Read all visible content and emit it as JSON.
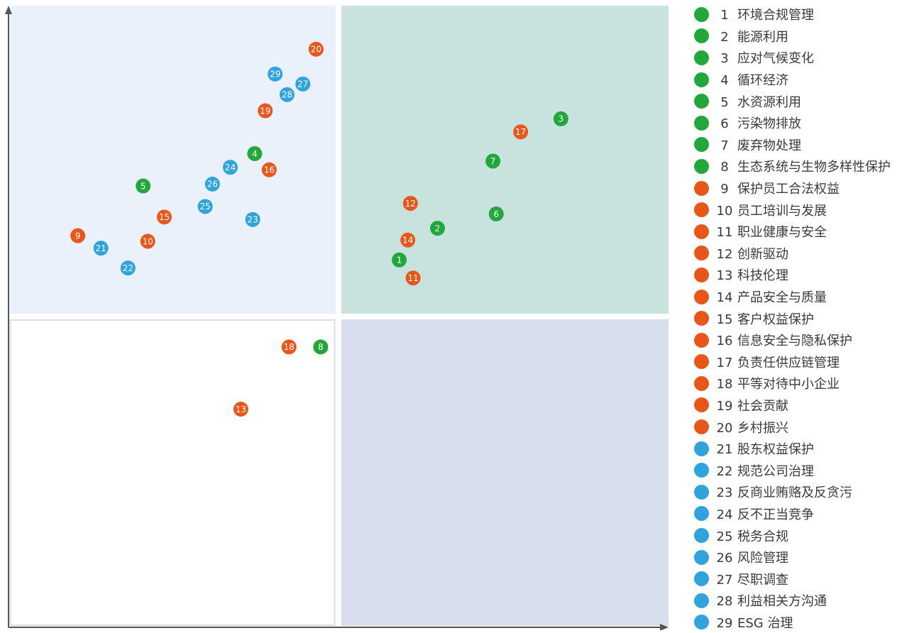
{
  "colors": {
    "environment": "#22a83a",
    "social": "#e8561a",
    "governance": "#2ea3dc",
    "quadrant_top_left": "#eaf1fa",
    "quadrant_top_right": "#c8e2de",
    "quadrant_bottom_right": "#d6deec",
    "quadrant_bottom_left_border": "#dddddd",
    "axis": "#555555"
  },
  "chart_data": {
    "type": "scatter",
    "xlim": [
      0,
      100
    ],
    "ylim": [
      0,
      100
    ],
    "grid": false,
    "quadrant_split": {
      "x": 50,
      "y": 50
    },
    "legend_position": "right",
    "points": [
      {
        "id": "1",
        "x": 59.2,
        "y": 59.1,
        "category": "environment"
      },
      {
        "id": "2",
        "x": 65.0,
        "y": 64.2,
        "category": "environment"
      },
      {
        "id": "3",
        "x": 83.7,
        "y": 81.8,
        "category": "environment"
      },
      {
        "id": "4",
        "x": 37.3,
        "y": 76.2,
        "category": "environment"
      },
      {
        "id": "5",
        "x": 20.4,
        "y": 71.0,
        "category": "environment"
      },
      {
        "id": "6",
        "x": 73.9,
        "y": 66.5,
        "category": "environment"
      },
      {
        "id": "7",
        "x": 73.4,
        "y": 75.0,
        "category": "environment"
      },
      {
        "id": "8",
        "x": 47.3,
        "y": 45.1,
        "category": "environment"
      },
      {
        "id": "9",
        "x": 10.5,
        "y": 63.0,
        "category": "social"
      },
      {
        "id": "10",
        "x": 21.1,
        "y": 62.1,
        "category": "social"
      },
      {
        "id": "11",
        "x": 61.3,
        "y": 56.2,
        "category": "social"
      },
      {
        "id": "12",
        "x": 60.9,
        "y": 68.2,
        "category": "social"
      },
      {
        "id": "13",
        "x": 35.2,
        "y": 35.1,
        "category": "social"
      },
      {
        "id": "14",
        "x": 60.5,
        "y": 62.3,
        "category": "social"
      },
      {
        "id": "15",
        "x": 23.6,
        "y": 66.0,
        "category": "social"
      },
      {
        "id": "16",
        "x": 39.5,
        "y": 73.6,
        "category": "social"
      },
      {
        "id": "17",
        "x": 77.6,
        "y": 79.7,
        "category": "social"
      },
      {
        "id": "18",
        "x": 42.5,
        "y": 45.1,
        "category": "social"
      },
      {
        "id": "19",
        "x": 38.9,
        "y": 83.1,
        "category": "social"
      },
      {
        "id": "20",
        "x": 46.6,
        "y": 93.0,
        "category": "social"
      },
      {
        "id": "21",
        "x": 14.0,
        "y": 61.0,
        "category": "governance"
      },
      {
        "id": "22",
        "x": 18.1,
        "y": 57.8,
        "category": "governance"
      },
      {
        "id": "23",
        "x": 37.0,
        "y": 65.6,
        "category": "governance"
      },
      {
        "id": "24",
        "x": 33.6,
        "y": 74.0,
        "category": "governance"
      },
      {
        "id": "25",
        "x": 29.8,
        "y": 67.7,
        "category": "governance"
      },
      {
        "id": "26",
        "x": 30.9,
        "y": 71.3,
        "category": "governance"
      },
      {
        "id": "27",
        "x": 44.6,
        "y": 87.4,
        "category": "governance"
      },
      {
        "id": "28",
        "x": 42.2,
        "y": 85.7,
        "category": "governance"
      },
      {
        "id": "29",
        "x": 40.4,
        "y": 89.0,
        "category": "governance"
      }
    ]
  },
  "legend": [
    {
      "num": "1",
      "label": "环境合规管理",
      "category": "environment"
    },
    {
      "num": "2",
      "label": "能源利用",
      "category": "environment"
    },
    {
      "num": "3",
      "label": "应对气候变化",
      "category": "environment"
    },
    {
      "num": "4",
      "label": "循环经济",
      "category": "environment"
    },
    {
      "num": "5",
      "label": "水资源利用",
      "category": "environment"
    },
    {
      "num": "6",
      "label": "污染物排放",
      "category": "environment"
    },
    {
      "num": "7",
      "label": "废弃物处理",
      "category": "environment"
    },
    {
      "num": "8",
      "label": "生态系统与生物多样性保护",
      "category": "environment"
    },
    {
      "num": "9",
      "label": "保护员工合法权益",
      "category": "social"
    },
    {
      "num": "10",
      "label": "员工培训与发展",
      "category": "social"
    },
    {
      "num": "11",
      "label": "职业健康与安全",
      "category": "social"
    },
    {
      "num": "12",
      "label": "创新驱动",
      "category": "social"
    },
    {
      "num": "13",
      "label": "科技伦理",
      "category": "social"
    },
    {
      "num": "14",
      "label": "产品安全与质量",
      "category": "social"
    },
    {
      "num": "15",
      "label": "客户权益保护",
      "category": "social"
    },
    {
      "num": "16",
      "label": "信息安全与隐私保护",
      "category": "social"
    },
    {
      "num": "17",
      "label": "负责任供应链管理",
      "category": "social"
    },
    {
      "num": "18",
      "label": "平等对待中小企业",
      "category": "social"
    },
    {
      "num": "19",
      "label": "社会贡献",
      "category": "social"
    },
    {
      "num": "20",
      "label": "乡村振兴",
      "category": "social"
    },
    {
      "num": "21",
      "label": "股东权益保护",
      "category": "governance"
    },
    {
      "num": "22",
      "label": "规范公司治理",
      "category": "governance"
    },
    {
      "num": "23",
      "label": "反商业贿赂及反贪污",
      "category": "governance"
    },
    {
      "num": "24",
      "label": "反不正当竞争",
      "category": "governance"
    },
    {
      "num": "25",
      "label": "税务合规",
      "category": "governance"
    },
    {
      "num": "26",
      "label": "风险管理",
      "category": "governance"
    },
    {
      "num": "27",
      "label": "尽职调查",
      "category": "governance"
    },
    {
      "num": "28",
      "label": "利益相关方沟通",
      "category": "governance"
    },
    {
      "num": "29",
      "label": "ESG 治理",
      "category": "governance"
    }
  ]
}
